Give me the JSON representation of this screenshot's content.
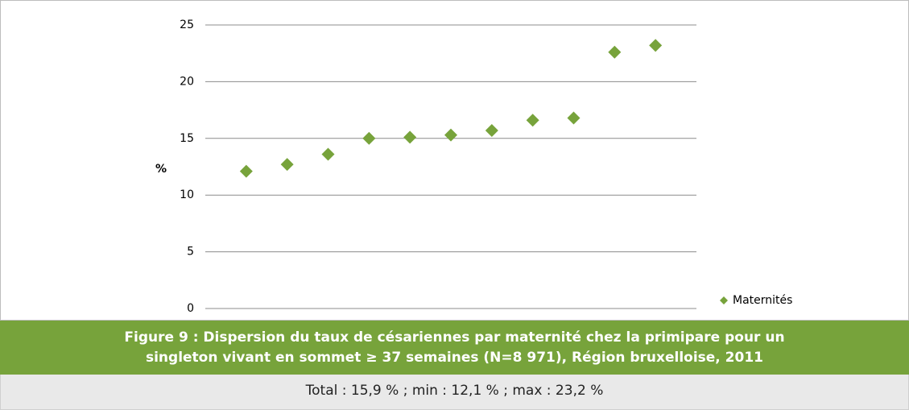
{
  "chart_data": {
    "type": "scatter",
    "y_label": "%",
    "categories": [
      null,
      null,
      null,
      null,
      null,
      null,
      null,
      null,
      null,
      null,
      null
    ],
    "series": [
      {
        "name": "Maternités",
        "color": "#77a33b",
        "values": [
          12.1,
          12.7,
          13.6,
          15.0,
          15.1,
          15.3,
          15.7,
          16.6,
          16.8,
          22.6,
          23.2
        ]
      }
    ],
    "ylim": [
      0,
      25
    ],
    "yticks": [
      0,
      5,
      10,
      15,
      20,
      25
    ],
    "grid": true,
    "legend": "right"
  },
  "caption": {
    "title": "Figure 9 : Dispersion du taux de césariennes par maternité chez la primipare pour un singleton vivant en sommet ≥ 37 semaines (N=8 971), Région bruxelloise, 2011",
    "note": "Total : 15,9 % ; min : 12,1  % ; max : 23,2 %"
  }
}
